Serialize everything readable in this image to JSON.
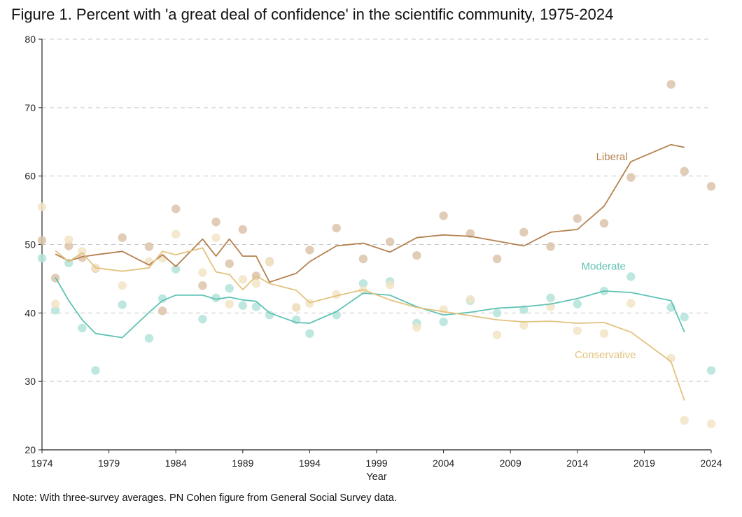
{
  "title": "Figure 1. Percent with 'a great deal of confidence' in the scientific community, 1975-2024",
  "note": "Note: With three-survey averages. PN Cohen figure from General Social Survey data.",
  "chart_data": {
    "type": "line",
    "title": "Figure 1. Percent with 'a great deal of confidence' in the scientific community, 1975-2024",
    "xlabel": "Year",
    "ylabel": "",
    "xlim": [
      1974,
      2024
    ],
    "ylim": [
      20,
      80
    ],
    "x_ticks": [
      "1974",
      "1979",
      "1984",
      "1989",
      "1994",
      "1999",
      "2004",
      "2009",
      "2014",
      "2019",
      "2024"
    ],
    "y_ticks": [
      "20",
      "30",
      "40",
      "50",
      "60",
      "70",
      "80"
    ],
    "grid": "horizontal dashed",
    "series": [
      {
        "name": "Liberal",
        "color": "#b5814f",
        "point_color": "#dcc3aa",
        "points": [
          [
            1974,
            50.6
          ],
          [
            1975,
            45.1
          ],
          [
            1976,
            49.8
          ],
          [
            1977,
            48.1
          ],
          [
            1978,
            46.5
          ],
          [
            1980,
            51.0
          ],
          [
            1982,
            49.7
          ],
          [
            1983,
            40.3
          ],
          [
            1984,
            55.2
          ],
          [
            1986,
            44.0
          ],
          [
            1987,
            53.3
          ],
          [
            1988,
            47.2
          ],
          [
            1989,
            52.2
          ],
          [
            1990,
            45.4
          ],
          [
            1991,
            47.5
          ],
          [
            1993,
            40.8
          ],
          [
            1994,
            49.2
          ],
          [
            1996,
            52.4
          ],
          [
            1998,
            47.9
          ],
          [
            2000,
            50.4
          ],
          [
            2002,
            48.4
          ],
          [
            2004,
            54.2
          ],
          [
            2006,
            51.6
          ],
          [
            2008,
            47.9
          ],
          [
            2010,
            51.8
          ],
          [
            2012,
            49.7
          ],
          [
            2014,
            53.8
          ],
          [
            2016,
            53.1
          ],
          [
            2018,
            59.8
          ],
          [
            2021,
            73.4
          ],
          [
            2022,
            60.7
          ],
          [
            2024,
            58.5
          ]
        ],
        "average": [
          [
            1975,
            48.6
          ],
          [
            1976,
            47.6
          ],
          [
            1977,
            48.2
          ],
          [
            1978,
            48.5
          ],
          [
            1980,
            49.0
          ],
          [
            1982,
            47.0
          ],
          [
            1983,
            48.5
          ],
          [
            1984,
            46.8
          ],
          [
            1986,
            50.8
          ],
          [
            1987,
            48.3
          ],
          [
            1988,
            50.8
          ],
          [
            1989,
            48.3
          ],
          [
            1990,
            48.3
          ],
          [
            1991,
            44.5
          ],
          [
            1993,
            45.8
          ],
          [
            1994,
            47.5
          ],
          [
            1996,
            49.8
          ],
          [
            1998,
            50.2
          ],
          [
            2000,
            48.9
          ],
          [
            2002,
            51.0
          ],
          [
            2004,
            51.4
          ],
          [
            2006,
            51.2
          ],
          [
            2008,
            50.5
          ],
          [
            2010,
            49.8
          ],
          [
            2012,
            51.8
          ],
          [
            2014,
            52.2
          ],
          [
            2016,
            55.6
          ],
          [
            2018,
            62.1
          ],
          [
            2021,
            64.6
          ],
          [
            2022,
            64.2
          ]
        ]
      },
      {
        "name": "Moderate",
        "color": "#5fc2b4",
        "point_color": "#b3e3da",
        "points": [
          [
            1974,
            48.0
          ],
          [
            1975,
            40.4
          ],
          [
            1976,
            47.3
          ],
          [
            1977,
            37.8
          ],
          [
            1978,
            31.6
          ],
          [
            1980,
            41.2
          ],
          [
            1982,
            36.3
          ],
          [
            1983,
            42.1
          ],
          [
            1984,
            46.4
          ],
          [
            1986,
            39.1
          ],
          [
            1987,
            42.2
          ],
          [
            1988,
            43.6
          ],
          [
            1989,
            41.1
          ],
          [
            1990,
            40.9
          ],
          [
            1991,
            39.7
          ],
          [
            1993,
            39.0
          ],
          [
            1994,
            37.0
          ],
          [
            1996,
            39.7
          ],
          [
            1998,
            44.3
          ],
          [
            2000,
            44.6
          ],
          [
            2002,
            38.5
          ],
          [
            2004,
            38.7
          ],
          [
            2006,
            41.8
          ],
          [
            2008,
            40.0
          ],
          [
            2010,
            40.5
          ],
          [
            2012,
            42.2
          ],
          [
            2014,
            41.3
          ],
          [
            2016,
            43.2
          ],
          [
            2018,
            45.3
          ],
          [
            2021,
            40.8
          ],
          [
            2022,
            39.4
          ],
          [
            2024,
            31.6
          ]
        ],
        "average": [
          [
            1975,
            45.2
          ],
          [
            1976,
            41.8
          ],
          [
            1977,
            39.0
          ],
          [
            1978,
            37.0
          ],
          [
            1980,
            36.4
          ],
          [
            1982,
            40.1
          ],
          [
            1983,
            41.8
          ],
          [
            1984,
            42.6
          ],
          [
            1986,
            42.6
          ],
          [
            1987,
            42.0
          ],
          [
            1988,
            42.3
          ],
          [
            1989,
            41.9
          ],
          [
            1990,
            41.7
          ],
          [
            1991,
            40.0
          ],
          [
            1993,
            38.6
          ],
          [
            1994,
            38.5
          ],
          [
            1996,
            40.2
          ],
          [
            1998,
            42.9
          ],
          [
            2000,
            42.6
          ],
          [
            2002,
            40.9
          ],
          [
            2004,
            39.7
          ],
          [
            2006,
            40.1
          ],
          [
            2008,
            40.7
          ],
          [
            2010,
            40.9
          ],
          [
            2012,
            41.3
          ],
          [
            2014,
            42.1
          ],
          [
            2016,
            43.2
          ],
          [
            2018,
            43.0
          ],
          [
            2021,
            41.8
          ],
          [
            2022,
            37.2
          ]
        ]
      },
      {
        "name": "Conservative",
        "color": "#e3c27e",
        "point_color": "#f2e4c6",
        "points": [
          [
            1974,
            55.5
          ],
          [
            1975,
            41.3
          ],
          [
            1976,
            50.7
          ],
          [
            1977,
            49.0
          ],
          [
            1978,
            46.6
          ],
          [
            1980,
            44.0
          ],
          [
            1982,
            47.5
          ],
          [
            1983,
            48.0
          ],
          [
            1984,
            51.5
          ],
          [
            1986,
            45.9
          ],
          [
            1987,
            51.0
          ],
          [
            1988,
            41.3
          ],
          [
            1989,
            44.9
          ],
          [
            1990,
            44.3
          ],
          [
            1991,
            47.4
          ],
          [
            1993,
            40.8
          ],
          [
            1994,
            41.4
          ],
          [
            1996,
            42.7
          ],
          [
            1998,
            43.3
          ],
          [
            2000,
            44.1
          ],
          [
            2002,
            37.9
          ],
          [
            2004,
            40.5
          ],
          [
            2006,
            42.0
          ],
          [
            2008,
            36.8
          ],
          [
            2010,
            38.2
          ],
          [
            2012,
            40.9
          ],
          [
            2014,
            37.4
          ],
          [
            2016,
            37.0
          ],
          [
            2018,
            41.4
          ],
          [
            2021,
            33.4
          ],
          [
            2022,
            24.3
          ],
          [
            2024,
            23.8
          ]
        ],
        "average": [
          [
            1975,
            49.1
          ],
          [
            1976,
            47.5
          ],
          [
            1977,
            48.8
          ],
          [
            1978,
            46.6
          ],
          [
            1980,
            46.1
          ],
          [
            1982,
            46.6
          ],
          [
            1983,
            49.0
          ],
          [
            1984,
            48.5
          ],
          [
            1986,
            49.5
          ],
          [
            1987,
            46.0
          ],
          [
            1988,
            45.6
          ],
          [
            1989,
            43.4
          ],
          [
            1990,
            45.4
          ],
          [
            1991,
            44.3
          ],
          [
            1993,
            43.3
          ],
          [
            1994,
            41.5
          ],
          [
            1996,
            42.5
          ],
          [
            1998,
            43.4
          ],
          [
            2000,
            41.9
          ],
          [
            2002,
            40.8
          ],
          [
            2004,
            40.2
          ],
          [
            2006,
            39.6
          ],
          [
            2008,
            39.0
          ],
          [
            2010,
            38.7
          ],
          [
            2012,
            38.8
          ],
          [
            2014,
            38.5
          ],
          [
            2016,
            38.6
          ],
          [
            2018,
            37.2
          ],
          [
            2021,
            32.9
          ],
          [
            2022,
            27.2
          ]
        ]
      }
    ]
  }
}
